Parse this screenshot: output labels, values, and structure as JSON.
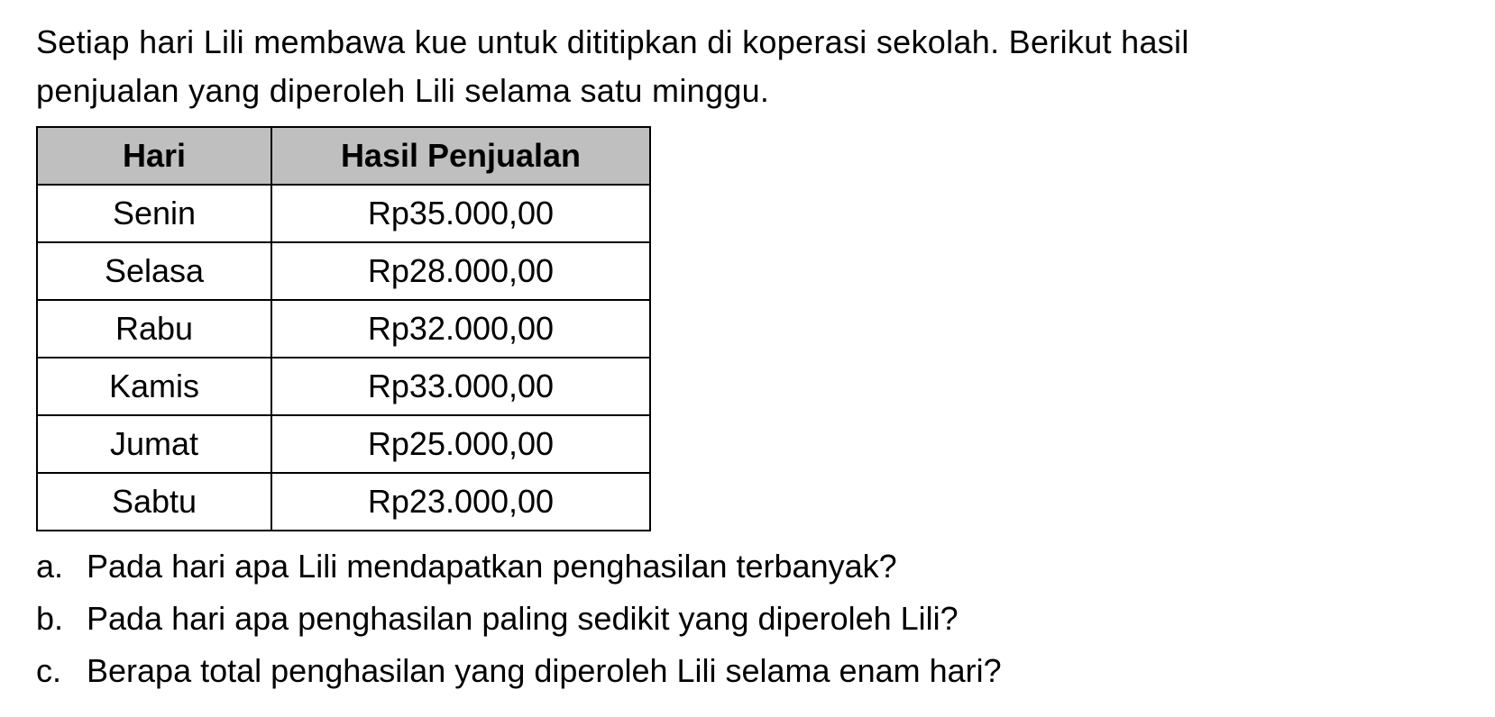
{
  "intro": {
    "line1": "Setiap hari Lili membawa kue untuk dititipkan di koperasi sekolah. Berikut hasil",
    "line2": "penjualan yang diperoleh Lili selama satu minggu."
  },
  "table": {
    "headers": {
      "col1": "Hari",
      "col2": "Hasil Penjualan"
    },
    "rows": [
      {
        "day": "Senin",
        "value": "Rp35.000,00"
      },
      {
        "day": "Selasa",
        "value": "Rp28.000,00"
      },
      {
        "day": "Rabu",
        "value": "Rp32.000,00"
      },
      {
        "day": "Kamis",
        "value": "Rp33.000,00"
      },
      {
        "day": "Jumat",
        "value": "Rp25.000,00"
      },
      {
        "day": "Sabtu",
        "value": "Rp23.000,00"
      }
    ],
    "styling": {
      "header_bg": "#bfbfbf",
      "border_color": "#000000",
      "border_width": 2,
      "font_size": 36,
      "col1_width": 260,
      "col2_width": 420,
      "text_align": "center"
    }
  },
  "questions": [
    {
      "letter": "a.",
      "text": "Pada hari apa Lili mendapatkan penghasilan terbanyak?"
    },
    {
      "letter": "b.",
      "text": "Pada hari apa penghasilan paling sedikit yang diperoleh Lili?"
    },
    {
      "letter": "c.",
      "text": "Berapa total penghasilan yang diperoleh Lili selama enam hari?"
    }
  ],
  "typography": {
    "font_family": "Arial",
    "body_font_size": 36,
    "text_color": "#000000",
    "background_color": "#ffffff"
  }
}
